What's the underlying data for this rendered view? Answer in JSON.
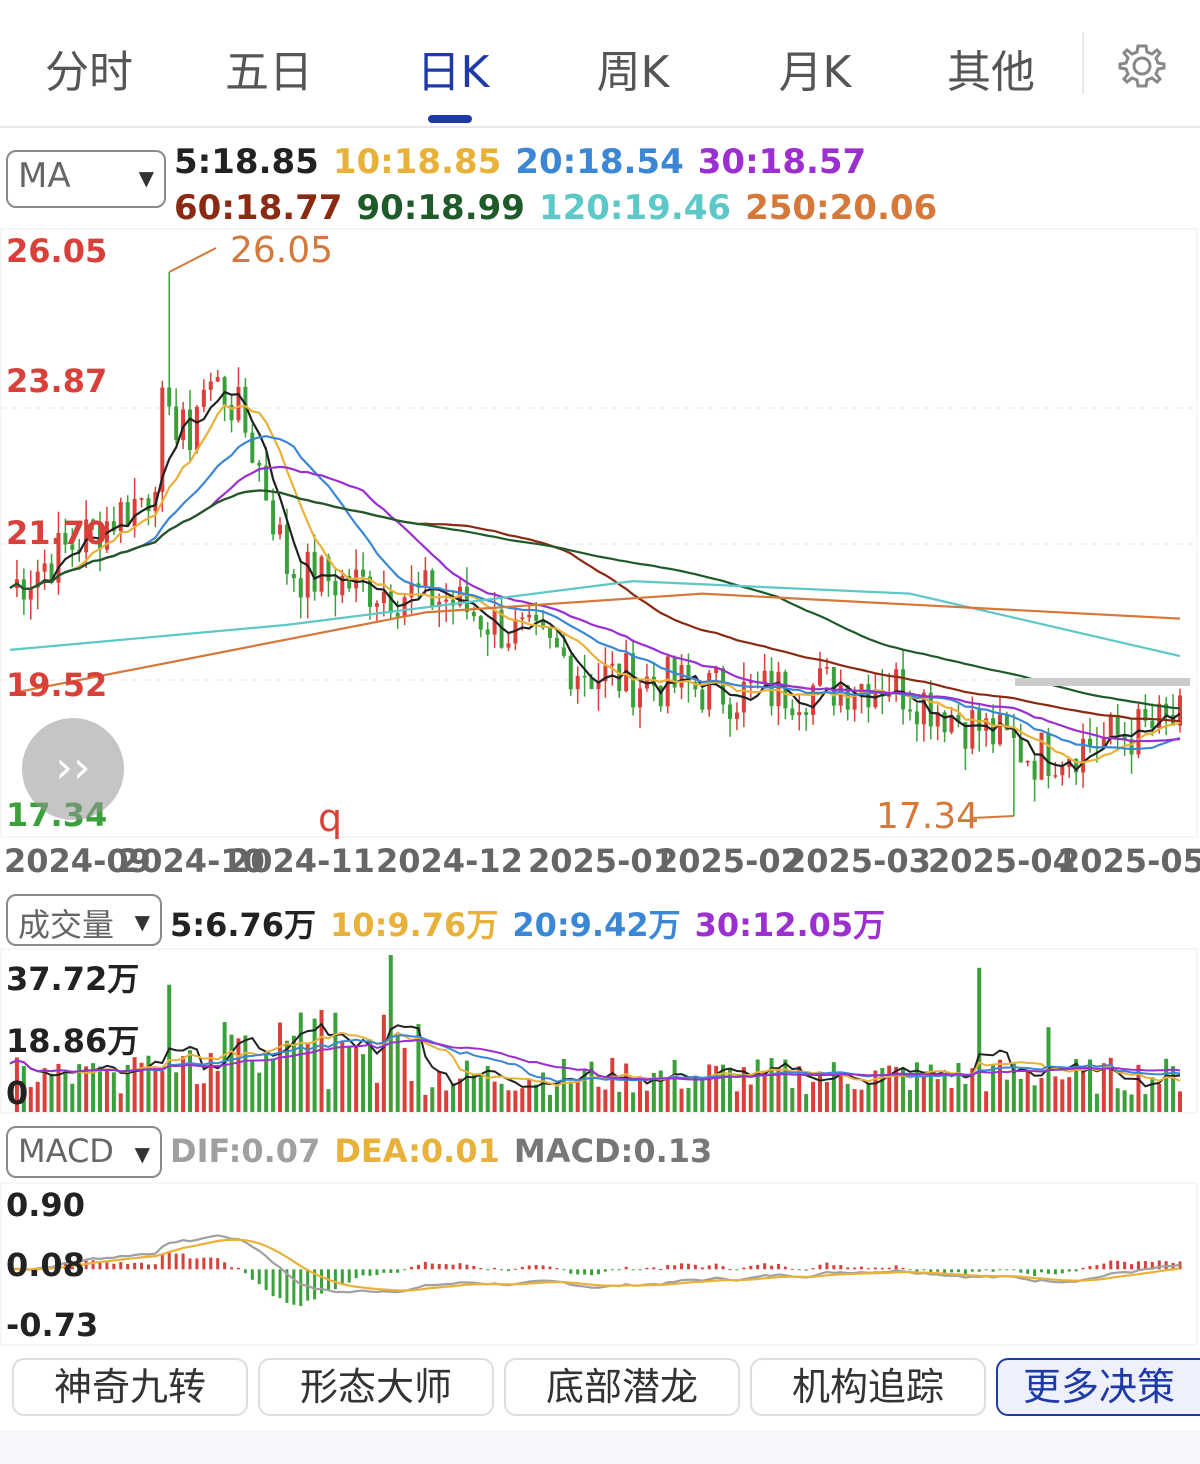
{
  "tabs": [
    {
      "label": "分时",
      "active": false
    },
    {
      "label": "五日",
      "active": false
    },
    {
      "label": "日K",
      "active": true
    },
    {
      "label": "周K",
      "active": false
    },
    {
      "label": "月K",
      "active": false
    },
    {
      "label": "其他",
      "active": false
    }
  ],
  "icons": {
    "settings": "gear-icon",
    "dropdown": "caret-down-icon",
    "expand": "double-chevron-right-icon"
  },
  "ma_panel": {
    "selector": "MA",
    "line1": [
      {
        "text": "5:18.85",
        "color": "#222222"
      },
      {
        "text": "10:18.85",
        "color": "#e8b23a"
      },
      {
        "text": "20:18.54",
        "color": "#3b87d6"
      },
      {
        "text": "30:18.57",
        "color": "#9b2fd0"
      }
    ],
    "line2": [
      {
        "text": "60:18.77",
        "color": "#8b2a12"
      },
      {
        "text": "90:18.99",
        "color": "#1f5a2a"
      },
      {
        "text": "120:19.46",
        "color": "#5cc8c8"
      },
      {
        "text": "250:20.06",
        "color": "#d6783a"
      }
    ]
  },
  "price_axis": {
    "high": "26.05",
    "l2": "23.87",
    "l3": "21.70",
    "l4": "19.52",
    "low": "17.34"
  },
  "annotations": {
    "max_label": "26.05",
    "min_label": "17.34",
    "mark": "q"
  },
  "x_axis": [
    "2024-09",
    "2024-10",
    "2024-11",
    "2024-12",
    "2025-01",
    "2025-02",
    "2025-03",
    "2025-04",
    "2025-05"
  ],
  "volume_panel": {
    "selector": "成交量",
    "legend": [
      {
        "text": "5:6.76万",
        "color": "#222222"
      },
      {
        "text": "10:9.76万",
        "color": "#e8b23a"
      },
      {
        "text": "20:9.42万",
        "color": "#3b87d6"
      },
      {
        "text": "30:12.05万",
        "color": "#9b2fd0"
      }
    ],
    "axis": {
      "max": "37.72万",
      "mid": "18.86万",
      "zero": "0"
    }
  },
  "macd_panel": {
    "selector": "MACD",
    "legend": [
      {
        "text": "DIF:0.07",
        "color": "#a0a0a0"
      },
      {
        "text": "DEA:0.01",
        "color": "#e8b23a"
      },
      {
        "text": "MACD:0.13",
        "color": "#777777"
      }
    ],
    "axis": {
      "top": "0.90",
      "mid": "0.08",
      "bottom": "-0.73"
    }
  },
  "bottom_buttons": [
    "神奇九转",
    "形态大师",
    "底部潜龙",
    "机构追踪",
    "更多决策"
  ],
  "colors": {
    "up": "#d9403a",
    "down": "#3aa13a",
    "accent": "#1e3aa8"
  },
  "chart_data": {
    "type": "candlestick",
    "y_range": [
      17.34,
      26.05
    ],
    "high": 26.05,
    "low": 17.34,
    "period_labels": [
      "2024-09",
      "2024-10",
      "2024-11",
      "2024-12",
      "2025-01",
      "2025-02",
      "2025-03",
      "2025-04",
      "2025-05"
    ],
    "close_by_month_approx": [
      21.0,
      22.6,
      21.2,
      20.8,
      19.6,
      19.3,
      19.5,
      18.3,
      18.85
    ],
    "volume_range": [
      0,
      37.72
    ],
    "macd_range": [
      -0.73,
      0.9
    ]
  }
}
